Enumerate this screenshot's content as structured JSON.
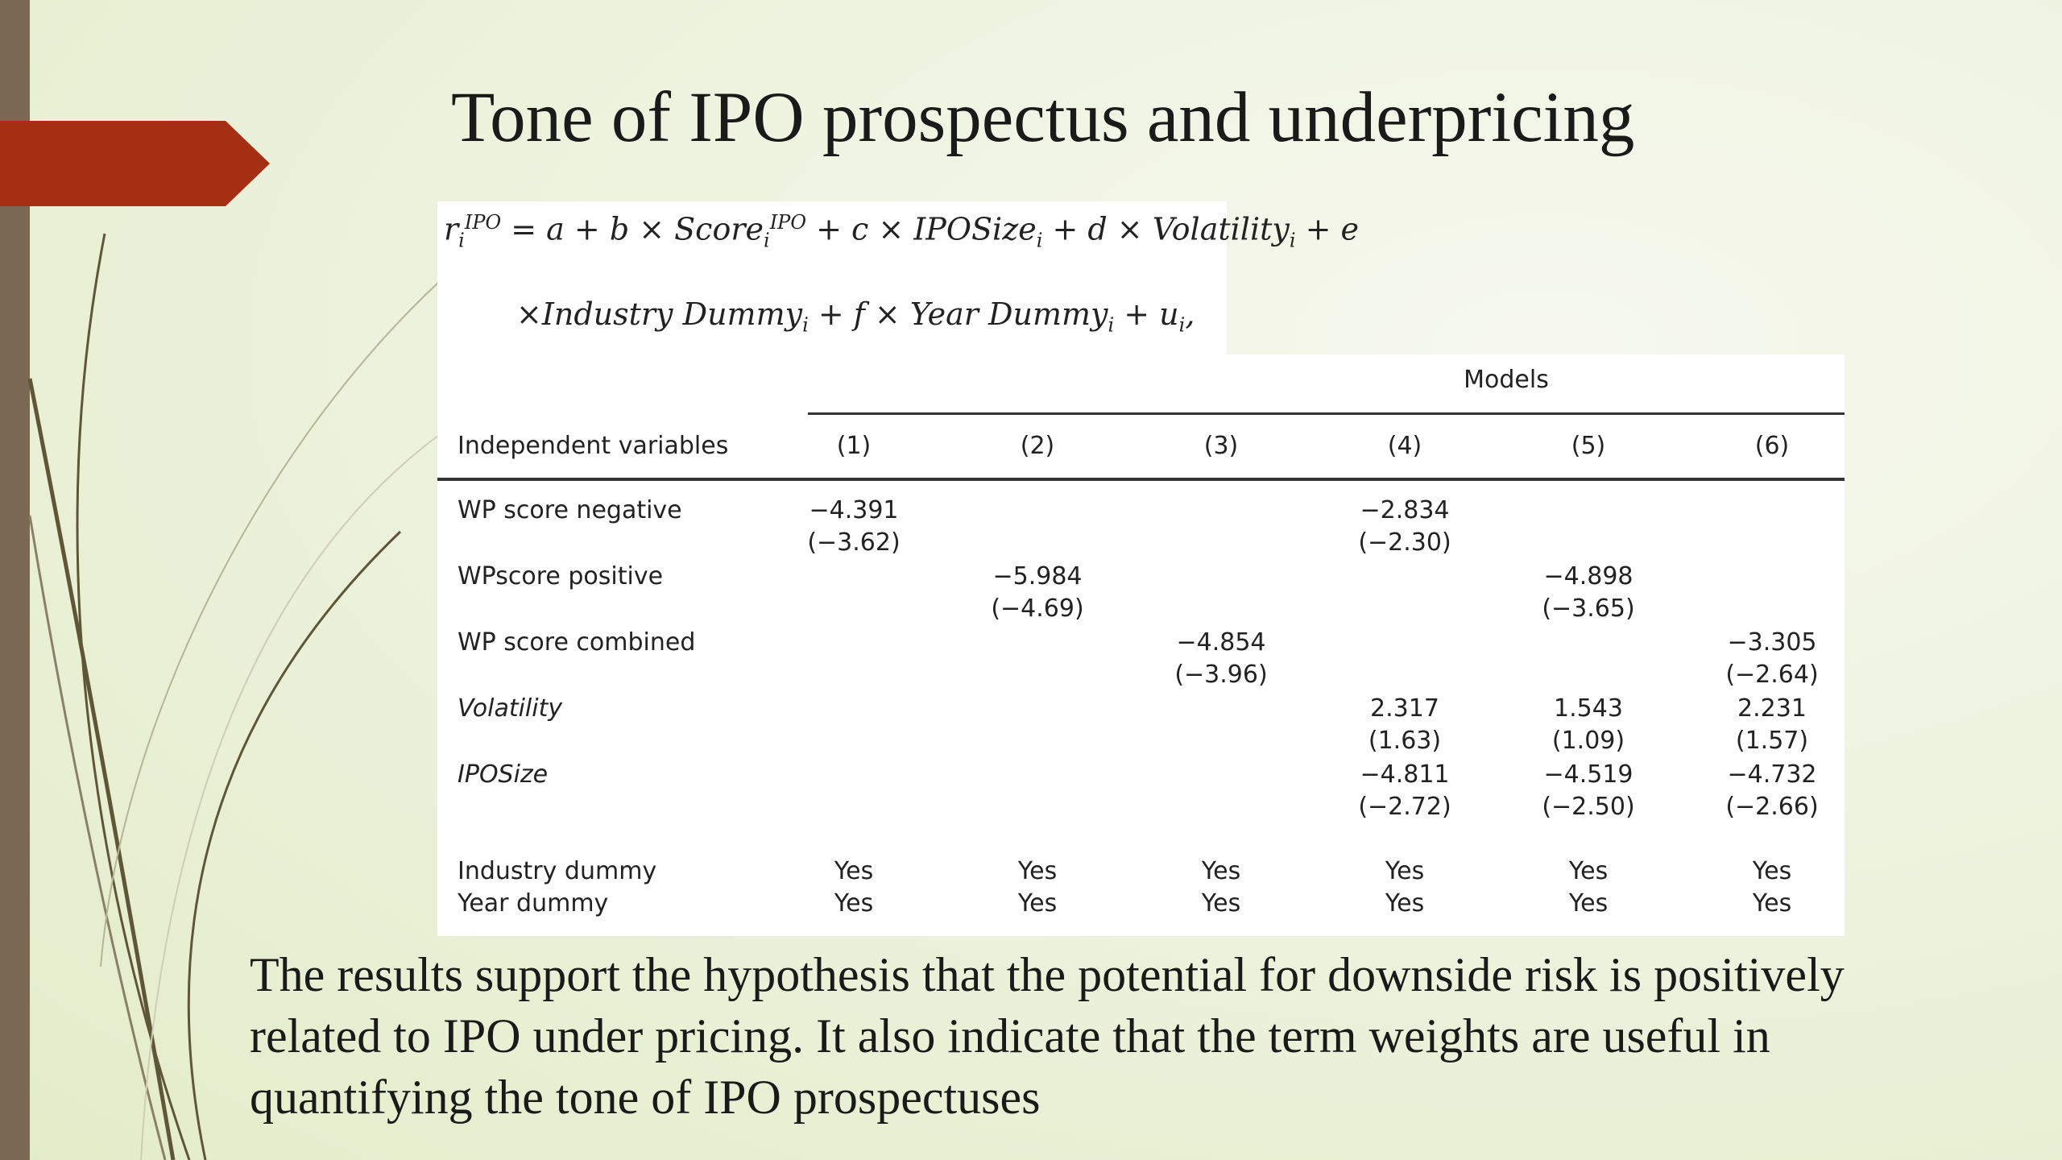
{
  "slide": {
    "title": "Tone of IPO prospectus and underpricing",
    "colors": {
      "accent_arrow": "#a52f12",
      "left_bar": "#7a6a53",
      "swoosh": "#5f5637"
    }
  },
  "equation": {
    "line1": {
      "r": "r",
      "r_sub": "i",
      "r_sup": "IPO",
      "eq": " = a + b × Score",
      "score_sub": "i",
      "score_sup": "IPO",
      "rest": " + c × IPOSize",
      "size_sub": "i",
      "rest2": " + d × Volatility",
      "vol_sub": "i",
      "rest3": " + e"
    },
    "line2": {
      "a": "×Industry Dummy",
      "a_sub": "i",
      "b": " + f × Year Dummy",
      "b_sub": "i",
      "c": " + u",
      "c_sub": "i",
      "end": ","
    }
  },
  "table": {
    "group_header": "Models",
    "row_header": "Independent variables",
    "columns": [
      "(1)",
      "(2)",
      "(3)",
      "(4)",
      "(5)",
      "(6)"
    ],
    "rows": [
      {
        "label": "WP score negative",
        "italic": false,
        "coef": [
          "−4.391",
          "",
          "",
          "−2.834",
          "",
          ""
        ],
        "tstat": [
          "(−3.62)",
          "",
          "",
          "(−2.30)",
          "",
          ""
        ]
      },
      {
        "label": "WPscore positive",
        "italic": false,
        "coef": [
          "",
          "−5.984",
          "",
          "",
          "−4.898",
          ""
        ],
        "tstat": [
          "",
          "(−4.69)",
          "",
          "",
          "(−3.65)",
          ""
        ]
      },
      {
        "label": "WP score combined",
        "italic": false,
        "coef": [
          "",
          "",
          "−4.854",
          "",
          "",
          "−3.305"
        ],
        "tstat": [
          "",
          "",
          "(−3.96)",
          "",
          "",
          "(−2.64)"
        ]
      },
      {
        "label": "Volatility",
        "italic": true,
        "coef": [
          "",
          "",
          "",
          "2.317",
          "1.543",
          "2.231"
        ],
        "tstat": [
          "",
          "",
          "",
          "(1.63)",
          "(1.09)",
          "(1.57)"
        ]
      },
      {
        "label": "IPOSize",
        "italic": true,
        "coef": [
          "",
          "",
          "",
          "−4.811",
          "−4.519",
          "−4.732"
        ],
        "tstat": [
          "",
          "",
          "",
          "(−2.72)",
          "(−2.50)",
          "(−2.66)"
        ]
      }
    ],
    "dummies": [
      {
        "label": "Industry dummy",
        "values": [
          "Yes",
          "Yes",
          "Yes",
          "Yes",
          "Yes",
          "Yes"
        ]
      },
      {
        "label": "Year dummy",
        "values": [
          "Yes",
          "Yes",
          "Yes",
          "Yes",
          "Yes",
          "Yes"
        ]
      }
    ]
  },
  "conclusion": "The results support the hypothesis that the potential for downside risk is positively related to IPO under pricing. It also indicate that the term weights are useful in quantifying the tone of IPO prospectuses"
}
